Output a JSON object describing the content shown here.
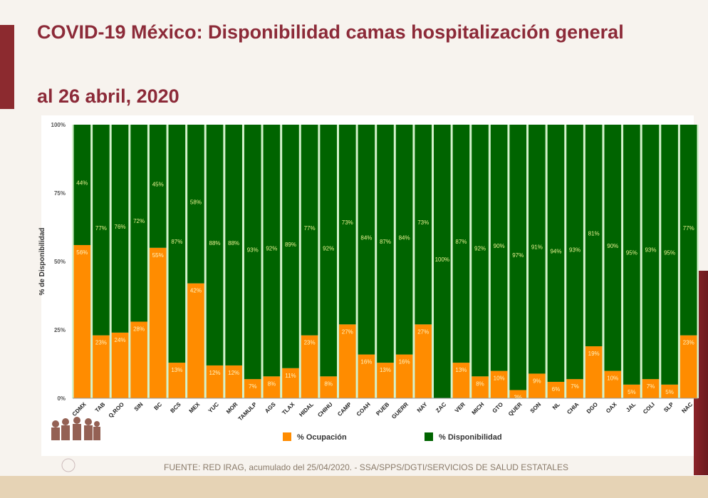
{
  "header": {
    "title": "COVID-19 México: Disponibilidad camas hospitalización general",
    "subtitle": "al 26 abril, 2020"
  },
  "footer": {
    "source": "FUENTE: RED IRAG, acumulado del 25/04/2020. -  SSA/SPPS/DGTI/SERVICIOS DE SALUD ESTATALES"
  },
  "chart_data": {
    "type": "bar",
    "stacked": true,
    "ylabel": "% de Disponibilidad",
    "ylim": [
      0,
      100
    ],
    "yticks": [
      "0%",
      "25%",
      "50%",
      "75%",
      "100%"
    ],
    "grid": false,
    "legend_position": "bottom",
    "categories": [
      "CDMX",
      "TAB",
      "Q.ROO",
      "SIN",
      "BC",
      "BCS",
      "MEX",
      "YUC",
      "MOR",
      "TAMULP",
      "AGS",
      "TLAX",
      "HIDAL",
      "CHIHU",
      "CAMP",
      "COAH",
      "PUEB",
      "GUERR",
      "NAY",
      "ZAC",
      "VER",
      "MICH",
      "GTO",
      "QUER",
      "SON",
      "NL",
      "CHIA",
      "DGO",
      "OAX",
      "JAL",
      "COLI",
      "SLP",
      "NAC"
    ],
    "series": [
      {
        "name": "% Ocupación",
        "color": "#ff8c00",
        "values": [
          56,
          23,
          24,
          28,
          55,
          13,
          42,
          12,
          12,
          7,
          8,
          11,
          23,
          8,
          27,
          16,
          13,
          16,
          27,
          0,
          13,
          8,
          10,
          3,
          9,
          6,
          7,
          19,
          10,
          5,
          7,
          5,
          23
        ]
      },
      {
        "name": "% Disponibilidad",
        "color": "#006400",
        "values": [
          44,
          77,
          76,
          72,
          45,
          87,
          58,
          88,
          88,
          93,
          92,
          89,
          77,
          92,
          73,
          84,
          87,
          84,
          73,
          100,
          87,
          92,
          90,
          97,
          91,
          94,
          93,
          81,
          90,
          95,
          93,
          95,
          77
        ]
      }
    ]
  }
}
